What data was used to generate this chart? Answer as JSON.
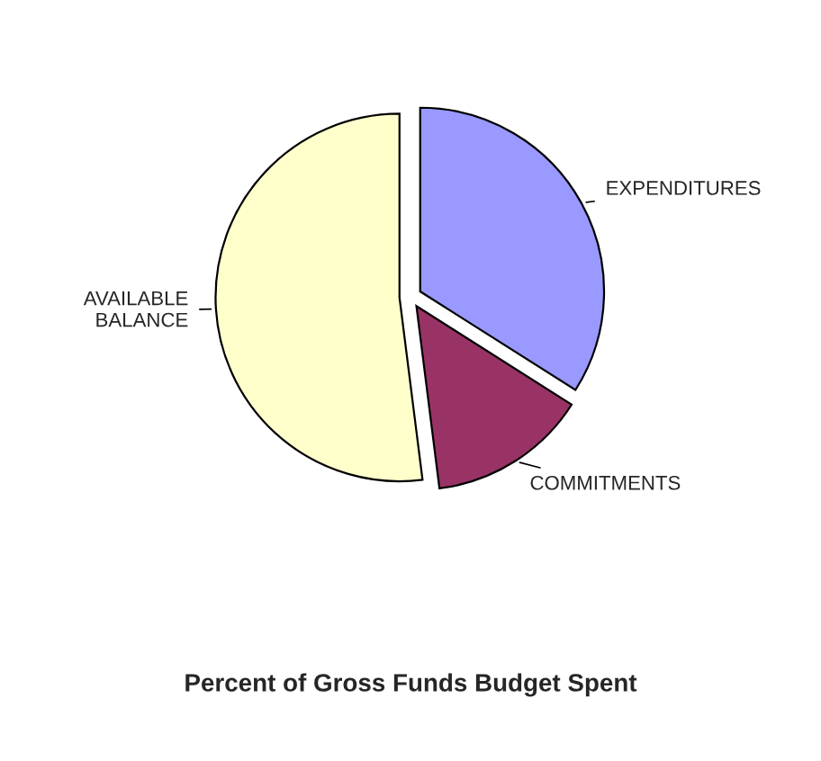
{
  "chart_data": {
    "type": "pie",
    "title": "Percent of Gross Funds Budget Spent",
    "categories": [
      "EXPENDITURES",
      "COMMITMENTS",
      "AVAILABLE\nBALANCE"
    ],
    "values": [
      34,
      14,
      52
    ],
    "colors": [
      "#9999ff",
      "#993366",
      "#ffffcc"
    ],
    "legend": false
  }
}
